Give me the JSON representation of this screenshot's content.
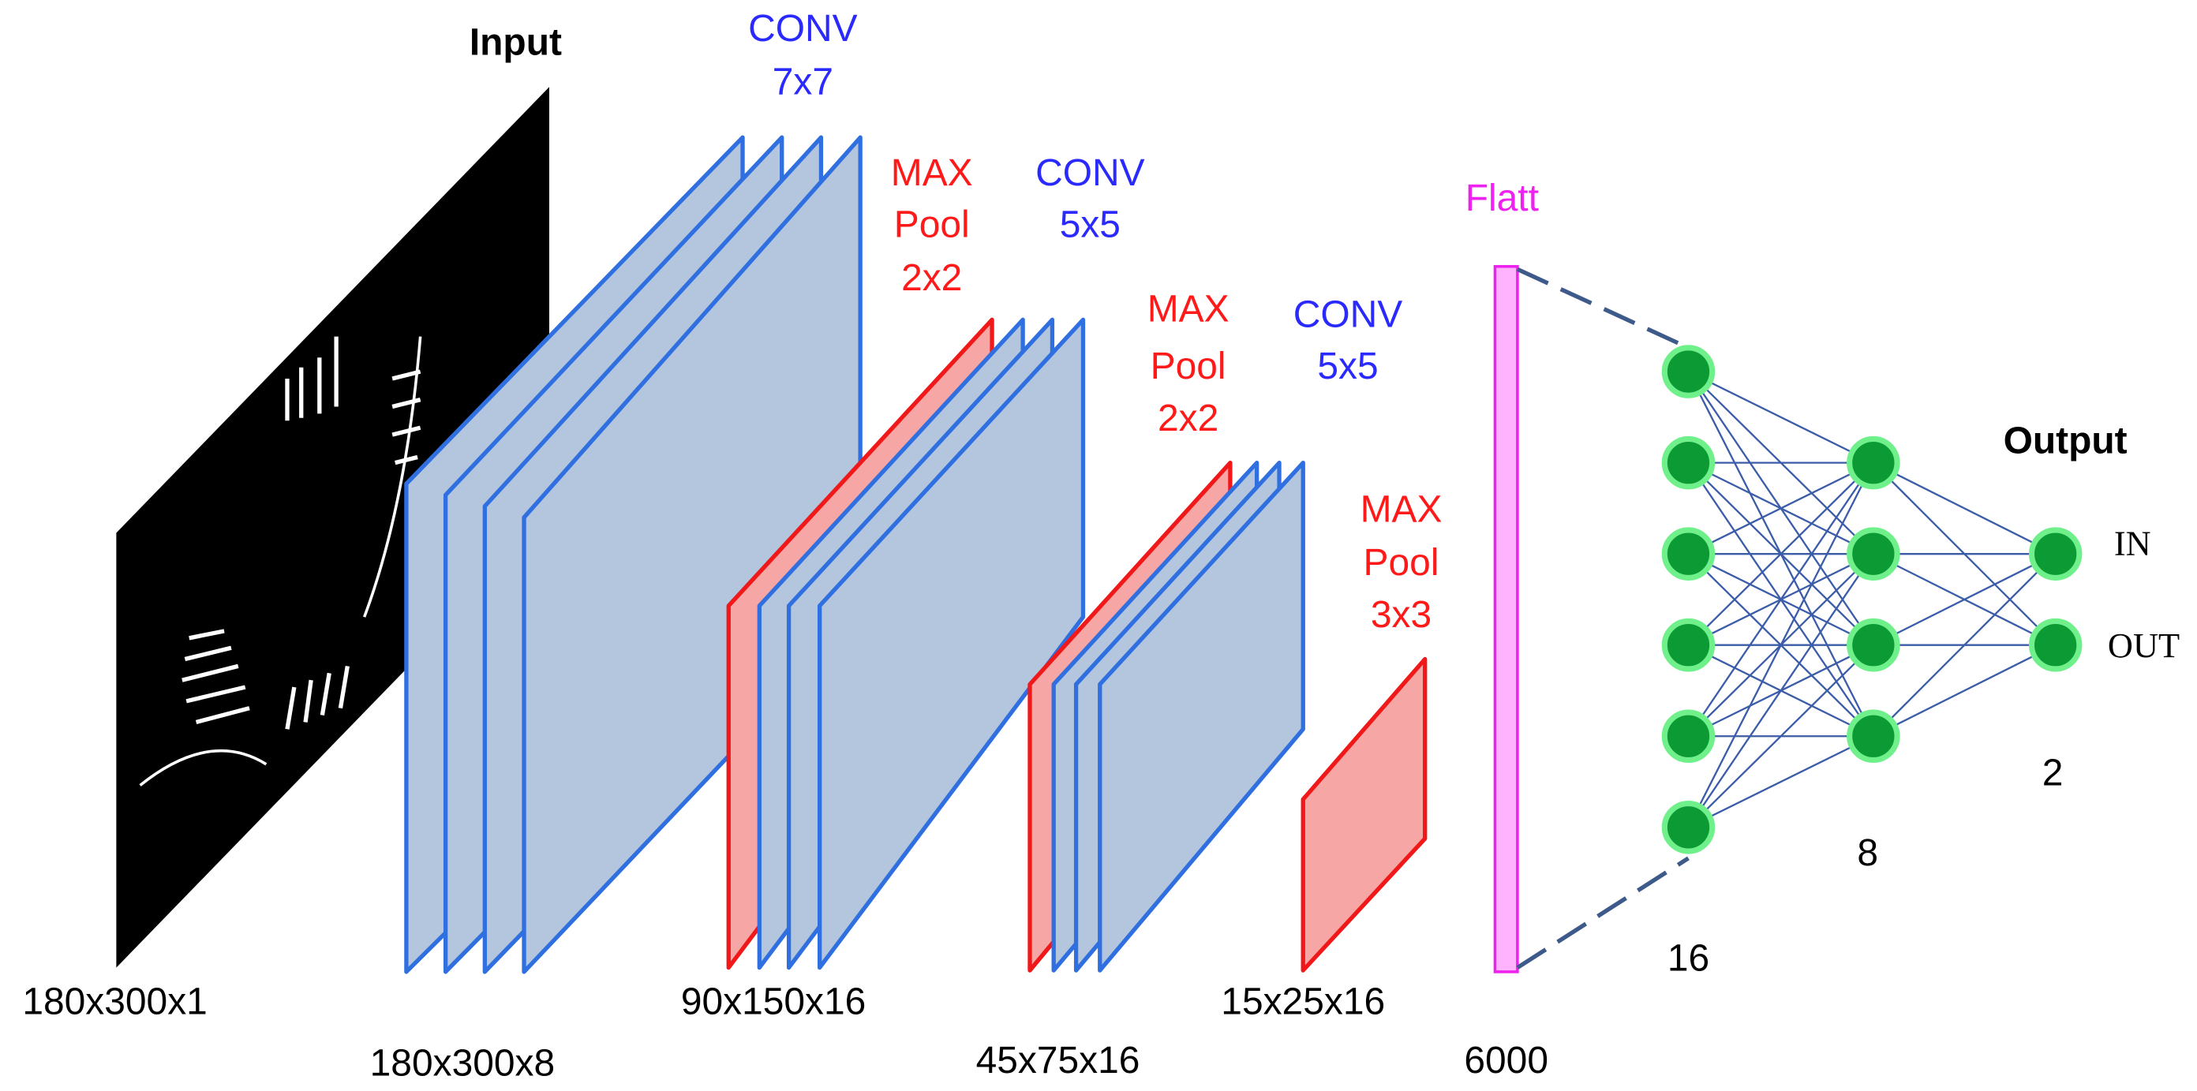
{
  "labels": {
    "input": "Input",
    "conv1": [
      "CONV",
      "7x7"
    ],
    "pool1": [
      "MAX",
      "Pool",
      "2x2"
    ],
    "conv2": [
      "CONV",
      "5x5"
    ],
    "pool2": [
      "MAX",
      "Pool",
      "2x2"
    ],
    "conv3": [
      "CONV",
      "5x5"
    ],
    "pool3": [
      "MAX",
      "Pool",
      "3x3"
    ],
    "flatten": "Flatt",
    "output": "Output",
    "classes": [
      "IN",
      "OUT"
    ]
  },
  "sizes": [
    "180x300x1",
    "180x300x8",
    "90x150x16",
    "45x75x16",
    "15x25x16",
    "6000"
  ],
  "neuron_counts": [
    16,
    8,
    2
  ]
}
